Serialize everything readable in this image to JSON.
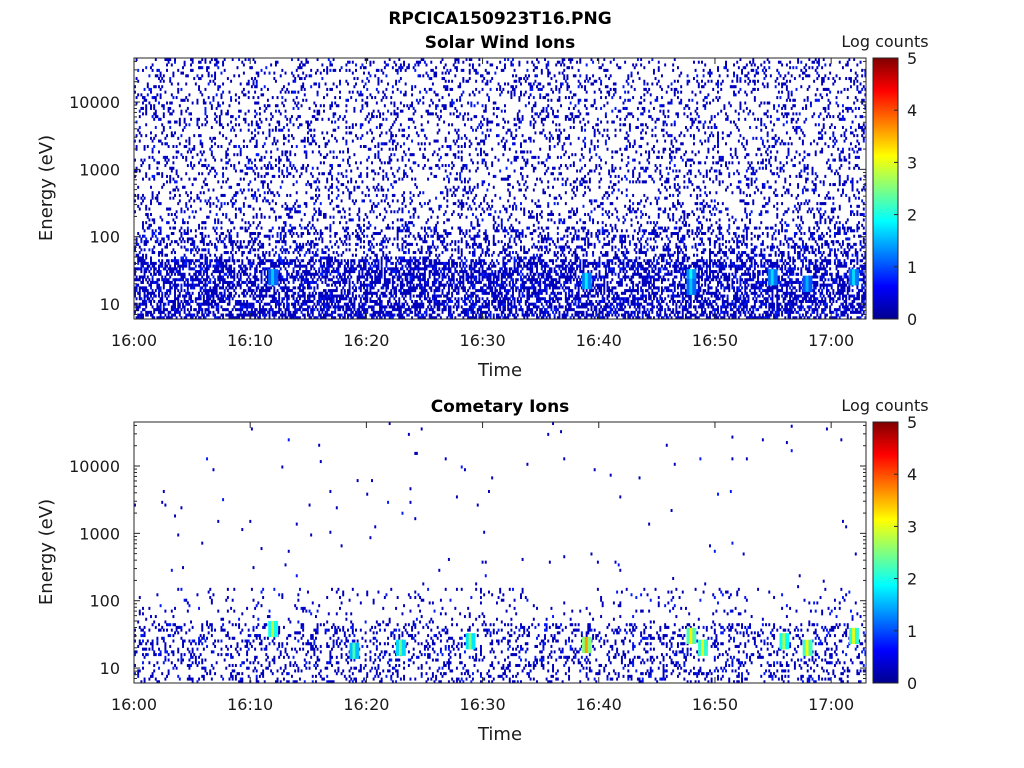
{
  "figure": {
    "title": "RPCICA150923T16.PNG"
  },
  "chart_data": [
    {
      "type": "heatmap",
      "title": "Solar Wind Ions",
      "xlabel": "Time",
      "ylabel": "Energy (eV)",
      "x_ticks": [
        "16:00",
        "16:10",
        "16:20",
        "16:30",
        "16:40",
        "16:50",
        "17:00"
      ],
      "x_range": [
        "16:00",
        "17:03"
      ],
      "y_ticks": [
        10,
        100,
        1000,
        10000
      ],
      "y_scale": "log",
      "y_range": [
        6,
        45000
      ],
      "colorbar": {
        "label": "Log counts",
        "ticks": [
          0,
          1,
          2,
          3,
          4,
          5
        ],
        "range": [
          0,
          5
        ],
        "colormap": "jet",
        "colors": [
          "#00008f",
          "#0000ff",
          "#00ffff",
          "#ffff00",
          "#ff0000",
          "#800000"
        ]
      },
      "hotspots": [
        {
          "time": "16:12",
          "energy": 25,
          "log_counts": 1.6
        },
        {
          "time": "16:39",
          "energy": 22,
          "log_counts": 1.8
        },
        {
          "time": "16:48",
          "energy": 25,
          "log_counts": 1.9
        },
        {
          "time": "16:48",
          "energy": 18,
          "log_counts": 1.6
        },
        {
          "time": "16:55",
          "energy": 25,
          "log_counts": 1.7
        },
        {
          "time": "16:58",
          "energy": 20,
          "log_counts": 1.5
        },
        {
          "time": "17:02",
          "energy": 25,
          "log_counts": 1.7
        }
      ]
    },
    {
      "type": "heatmap",
      "title": "Cometary Ions",
      "xlabel": "Time",
      "ylabel": "Energy (eV)",
      "x_ticks": [
        "16:00",
        "16:10",
        "16:20",
        "16:30",
        "16:40",
        "16:50",
        "17:00"
      ],
      "x_range": [
        "16:00",
        "17:03"
      ],
      "y_ticks": [
        10,
        100,
        1000,
        10000
      ],
      "y_scale": "log",
      "y_range": [
        6,
        45000
      ],
      "colorbar": {
        "label": "Log counts",
        "ticks": [
          0,
          1,
          2,
          3,
          4,
          5
        ],
        "range": [
          0,
          5
        ],
        "colormap": "jet",
        "colors": [
          "#00008f",
          "#0000ff",
          "#00ffff",
          "#ffff00",
          "#ff0000",
          "#800000"
        ]
      },
      "hotspots": [
        {
          "time": "16:12",
          "energy": 38,
          "log_counts": 2.8
        },
        {
          "time": "16:19",
          "energy": 18,
          "log_counts": 2.2
        },
        {
          "time": "16:23",
          "energy": 20,
          "log_counts": 2.4
        },
        {
          "time": "16:29",
          "energy": 25,
          "log_counts": 2.5
        },
        {
          "time": "16:39",
          "energy": 22,
          "log_counts": 3.6
        },
        {
          "time": "16:48",
          "energy": 30,
          "log_counts": 3.2
        },
        {
          "time": "16:49",
          "energy": 20,
          "log_counts": 3.0
        },
        {
          "time": "16:56",
          "energy": 25,
          "log_counts": 2.7
        },
        {
          "time": "16:58",
          "energy": 20,
          "log_counts": 3.1
        },
        {
          "time": "17:02",
          "energy": 30,
          "log_counts": 3.0
        }
      ]
    }
  ]
}
